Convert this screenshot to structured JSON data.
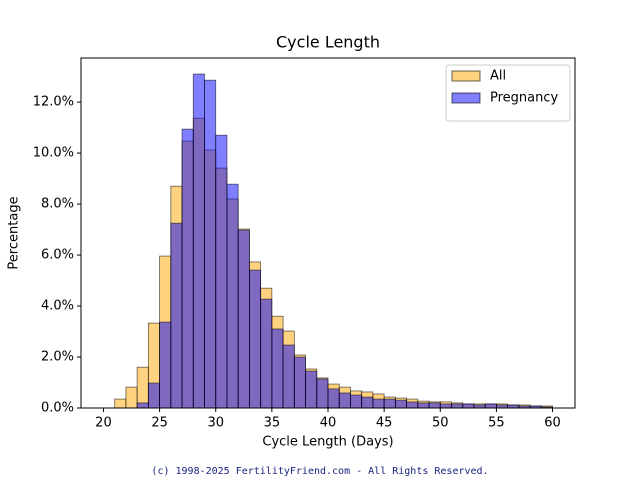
{
  "chart_data": {
    "type": "histogram",
    "title": "Cycle Length",
    "xlabel": "Cycle Length (Days)",
    "ylabel": "Percentage",
    "bins": [
      20,
      21,
      22,
      23,
      24,
      25,
      26,
      27,
      28,
      29,
      30,
      31,
      32,
      33,
      34,
      35,
      36,
      37,
      38,
      39,
      40,
      41,
      42,
      43,
      44,
      45,
      46,
      47,
      48,
      49,
      50,
      51,
      52,
      53,
      54,
      55,
      56,
      57,
      58,
      59,
      60
    ],
    "series": [
      {
        "name": "All",
        "color": "#ffa500",
        "values": [
          0,
          0.35,
          0.82,
          1.6,
          3.33,
          5.96,
          8.7,
          10.47,
          11.37,
          10.12,
          9.41,
          8.2,
          7.02,
          5.73,
          4.7,
          3.6,
          3.02,
          2.08,
          1.53,
          1.18,
          0.94,
          0.82,
          0.67,
          0.63,
          0.55,
          0.43,
          0.39,
          0.35,
          0.27,
          0.24,
          0.24,
          0.2,
          0.16,
          0.16,
          0.16,
          0.16,
          0.12,
          0.12,
          0.08,
          0.08
        ]
      },
      {
        "name": "Pregnancy",
        "color": "#0000ff",
        "values": [
          0,
          0,
          0,
          0.2,
          0.98,
          3.37,
          7.25,
          10.94,
          13.1,
          12.86,
          10.7,
          8.78,
          6.98,
          5.41,
          4.27,
          3.1,
          2.47,
          2.0,
          1.45,
          1.14,
          0.75,
          0.59,
          0.51,
          0.43,
          0.35,
          0.35,
          0.31,
          0.24,
          0.2,
          0.2,
          0.16,
          0.16,
          0.16,
          0.12,
          0.16,
          0.12,
          0.12,
          0.08,
          0.08,
          0.04
        ]
      }
    ],
    "opacity": 0.5,
    "xlim": [
      18,
      62
    ],
    "xticks": [
      20,
      25,
      30,
      35,
      40,
      45,
      50,
      55,
      60
    ],
    "ylim": [
      0,
      13.73
    ],
    "yticks": [
      {
        "value": 0,
        "label": "0.0%"
      },
      {
        "value": 2,
        "label": "2.0%"
      },
      {
        "value": 4,
        "label": "4.0%"
      },
      {
        "value": 6,
        "label": "6.0%"
      },
      {
        "value": 8,
        "label": "8.0%"
      },
      {
        "value": 10,
        "label": "10.0%"
      },
      {
        "value": 12,
        "label": "12.0%"
      }
    ],
    "legend": "upper right"
  },
  "footer": "(c) 1998-2025 FertilityFriend.com - All Rights Reserved."
}
